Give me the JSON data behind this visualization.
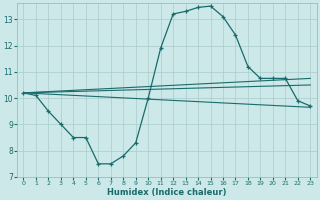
{
  "xlabel": "Humidex (Indice chaleur)",
  "bg_color": "#cce8e8",
  "grid_color": "#aacccc",
  "line_color": "#1a6b6b",
  "xlim": [
    -0.5,
    23.5
  ],
  "ylim": [
    7,
    13.6
  ],
  "yticks": [
    7,
    8,
    9,
    10,
    11,
    12,
    13
  ],
  "xticks": [
    0,
    1,
    2,
    3,
    4,
    5,
    6,
    7,
    8,
    9,
    10,
    11,
    12,
    13,
    14,
    15,
    16,
    17,
    18,
    19,
    20,
    21,
    22,
    23
  ],
  "series1_x": [
    0,
    1,
    2,
    3,
    4,
    5,
    6,
    7,
    8,
    9,
    10,
    11,
    12,
    13,
    14,
    15,
    16,
    17,
    18,
    19,
    20,
    21,
    22,
    23
  ],
  "series1_y": [
    10.2,
    10.1,
    9.5,
    9.0,
    8.5,
    8.5,
    7.5,
    7.5,
    7.8,
    8.3,
    10.0,
    11.9,
    13.2,
    13.3,
    13.45,
    13.5,
    13.1,
    12.4,
    11.2,
    10.75,
    10.75,
    10.75,
    9.9,
    9.7
  ],
  "series2_x": [
    0,
    23
  ],
  "series2_y": [
    10.2,
    10.75
  ],
  "series3_x": [
    0,
    23
  ],
  "series3_y": [
    10.2,
    10.5
  ],
  "series4_x": [
    0,
    23
  ],
  "series4_y": [
    10.2,
    9.65
  ]
}
